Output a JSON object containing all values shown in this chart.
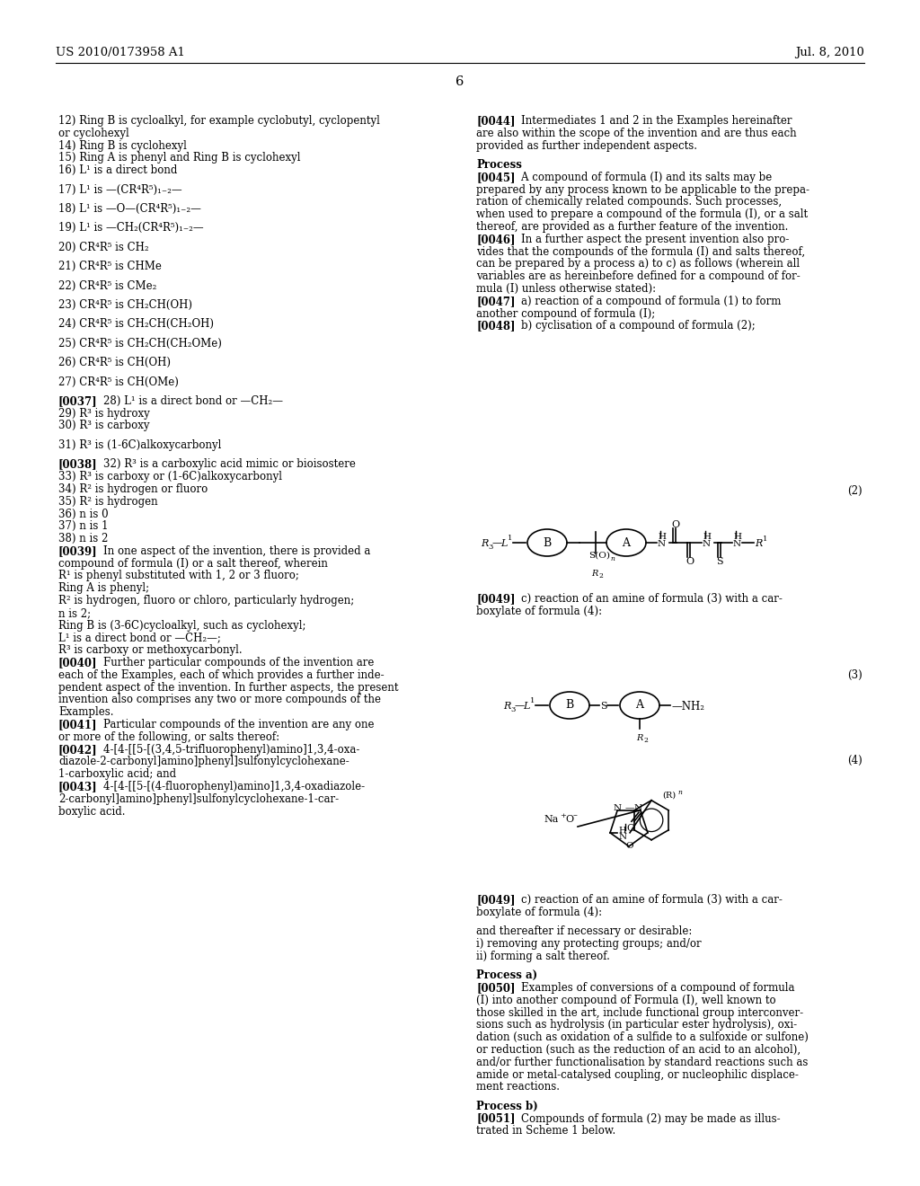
{
  "bg_color": "#ffffff",
  "header_left": "US 2010/0173958 A1",
  "header_right": "Jul. 8, 2010",
  "page_number": "6",
  "left_col": [
    {
      "type": "text",
      "text": "12) Ring B is cycloalkyl, for example cyclobutyl, cyclopentyl"
    },
    {
      "type": "text",
      "text": "or cyclohexyl"
    },
    {
      "type": "text",
      "text": "14) Ring B is cyclohexyl"
    },
    {
      "type": "text",
      "text": "15) Ring A is phenyl and Ring B is cyclohexyl"
    },
    {
      "type": "text",
      "text": "16) L¹ is a direct bond"
    },
    {
      "type": "blank"
    },
    {
      "type": "text",
      "text": "17) L¹ is —(CR⁴R⁵)₁₋₂—"
    },
    {
      "type": "blank"
    },
    {
      "type": "text",
      "text": "18) L¹ is —O—(CR⁴R⁵)₁₋₂—"
    },
    {
      "type": "blank"
    },
    {
      "type": "text",
      "text": "19) L¹ is —CH₂(CR⁴R⁵)₁₋₂—"
    },
    {
      "type": "blank"
    },
    {
      "type": "text",
      "text": "20) CR⁴R⁵ is CH₂"
    },
    {
      "type": "blank"
    },
    {
      "type": "text",
      "text": "21) CR⁴R⁵ is CHMe"
    },
    {
      "type": "blank"
    },
    {
      "type": "text",
      "text": "22) CR⁴R⁵ is CMe₂"
    },
    {
      "type": "blank"
    },
    {
      "type": "text",
      "text": "23) CR⁴R⁵ is CH₂CH(OH)"
    },
    {
      "type": "blank"
    },
    {
      "type": "text",
      "text": "24) CR⁴R⁵ is CH₂CH(CH₂OH)"
    },
    {
      "type": "blank"
    },
    {
      "type": "text",
      "text": "25) CR⁴R⁵ is CH₂CH(CH₂OMe)"
    },
    {
      "type": "blank"
    },
    {
      "type": "text",
      "text": "26) CR⁴R⁵ is CH(OH)"
    },
    {
      "type": "blank"
    },
    {
      "type": "text",
      "text": "27) CR⁴R⁵ is CH(OMe)"
    },
    {
      "type": "blank"
    },
    {
      "type": "bold_para",
      "tag": "[0037]",
      "rest": "    28) L¹ is a direct bond or —CH₂—"
    },
    {
      "type": "text",
      "text": "29) R³ is hydroxy"
    },
    {
      "type": "text",
      "text": "30) R³ is carboxy"
    },
    {
      "type": "blank"
    },
    {
      "type": "text",
      "text": "31) R³ is (1-6C)alkoxycarbonyl"
    },
    {
      "type": "blank"
    },
    {
      "type": "bold_para",
      "tag": "[0038]",
      "rest": "    32) R³ is a carboxylic acid mimic or bioisostere"
    },
    {
      "type": "text",
      "text": "33) R³ is carboxy or (1-6C)alkoxycarbonyl"
    },
    {
      "type": "text",
      "text": "34) R² is hydrogen or fluoro"
    },
    {
      "type": "text",
      "text": "35) R² is hydrogen"
    },
    {
      "type": "text",
      "text": "36) n is 0"
    },
    {
      "type": "text",
      "text": "37) n is 1"
    },
    {
      "type": "text",
      "text": "38) n is 2"
    },
    {
      "type": "bold_para",
      "tag": "[0039]",
      "rest": "    In one aspect of the invention, there is provided a"
    },
    {
      "type": "text",
      "text": "compound of formula (I) or a salt thereof, wherein"
    },
    {
      "type": "text",
      "text": "R¹ is phenyl substituted with 1, 2 or 3 fluoro;"
    },
    {
      "type": "text",
      "text": "Ring A is phenyl;"
    },
    {
      "type": "text",
      "text": "R² is hydrogen, fluoro or chloro, particularly hydrogen;"
    },
    {
      "type": "text",
      "text": "n is 2;"
    },
    {
      "type": "text",
      "text": "Ring B is (3-6C)cycloalkyl, such as cyclohexyl;"
    },
    {
      "type": "text",
      "text": "L¹ is a direct bond or —CH₂—;"
    },
    {
      "type": "text",
      "text": "R³ is carboxy or methoxycarbonyl."
    },
    {
      "type": "bold_para",
      "tag": "[0040]",
      "rest": "    Further particular compounds of the invention are"
    },
    {
      "type": "text",
      "text": "each of the Examples, each of which provides a further inde-"
    },
    {
      "type": "text",
      "text": "pendent aspect of the invention. In further aspects, the present"
    },
    {
      "type": "text",
      "text": "invention also comprises any two or more compounds of the"
    },
    {
      "type": "text",
      "text": "Examples."
    },
    {
      "type": "bold_para",
      "tag": "[0041]",
      "rest": "    Particular compounds of the invention are any one"
    },
    {
      "type": "text",
      "text": "or more of the following, or salts thereof:"
    },
    {
      "type": "bold_para",
      "tag": "[0042]",
      "rest": "    4-[4-[[5-[(3,4,5-trifluorophenyl)amino]1,3,4-oxa-"
    },
    {
      "type": "text",
      "text": "diazole-2-carbonyl]amino]phenyl]sulfonylcyclohexane-"
    },
    {
      "type": "text",
      "text": "1-carboxylic acid; and"
    },
    {
      "type": "bold_para",
      "tag": "[0043]",
      "rest": "    4-[4-[[5-[(4-fluorophenyl)amino]1,3,4-oxadiazole-"
    },
    {
      "type": "text",
      "text": "2-carbonyl]amino]phenyl]sulfonylcyclohexane-1-car-"
    },
    {
      "type": "text",
      "text": "boxylic acid."
    }
  ],
  "right_col": [
    {
      "type": "bold_para",
      "tag": "[0044]",
      "rest": "    Intermediates 1 and 2 in the Examples hereinafter",
      "extra_lines": [
        "are also within the scope of the invention and are thus each",
        "provided as further independent aspects."
      ]
    },
    {
      "type": "blank"
    },
    {
      "type": "bold_text",
      "text": "Process"
    },
    {
      "type": "bold_para",
      "tag": "[0045]",
      "rest": "    A compound of formula (I) and its salts may be",
      "extra_lines": [
        "prepared by any process known to be applicable to the prepa-",
        "ration of chemically related compounds. Such processes,",
        "when used to prepare a compound of the formula (I), or a salt",
        "thereof, are provided as a further feature of the invention."
      ]
    },
    {
      "type": "bold_para",
      "tag": "[0046]",
      "rest": "    In a further aspect the present invention also pro-",
      "extra_lines": [
        "vides that the compounds of the formula (I) and salts thereof,",
        "can be prepared by a process a) to c) as follows (wherein all",
        "variables are as hereinbefore defined for a compound of for-",
        "mula (I) unless otherwise stated):"
      ]
    },
    {
      "type": "bold_para",
      "tag": "[0047]",
      "rest": "    a) reaction of a compound of formula (1) to form",
      "extra_lines": [
        "another compound of formula (I);"
      ]
    },
    {
      "type": "bold_para",
      "tag": "[0048]",
      "rest": "    b) cyclisation of a compound of formula (2);"
    }
  ],
  "right_col_bottom": [
    {
      "type": "bold_para",
      "tag": "[0049]",
      "rest": "    c) reaction of an amine of formula (3) with a car-",
      "extra_lines": [
        "boxylate of formula (4):"
      ]
    },
    {
      "type": "blank"
    },
    {
      "type": "text",
      "text": "and thereafter if necessary or desirable:"
    },
    {
      "type": "text",
      "text": "i) removing any protecting groups; and/or"
    },
    {
      "type": "text",
      "text": "ii) forming a salt thereof."
    },
    {
      "type": "blank"
    },
    {
      "type": "bold_text",
      "text": "Process a)"
    },
    {
      "type": "bold_para",
      "tag": "[0050]",
      "rest": "    Examples of conversions of a compound of formula",
      "extra_lines": [
        "(I) into another compound of Formula (I), well known to",
        "those skilled in the art, include functional group interconver-",
        "sions such as hydrolysis (in particular ester hydrolysis), oxi-",
        "dation (such as oxidation of a sulfide to a sulfoxide or sulfone)",
        "or reduction (such as the reduction of an acid to an alcohol),",
        "and/or further functionalisation by standard reactions such as",
        "amide or metal-catalysed coupling, or nucleophilic displace-",
        "ment reactions."
      ]
    },
    {
      "type": "blank"
    },
    {
      "type": "bold_text",
      "text": "Process b)"
    },
    {
      "type": "bold_para",
      "tag": "[0051]",
      "rest": "    Compounds of formula (2) may be made as illus-",
      "extra_lines": [
        "trated in Scheme 1 below."
      ]
    }
  ]
}
